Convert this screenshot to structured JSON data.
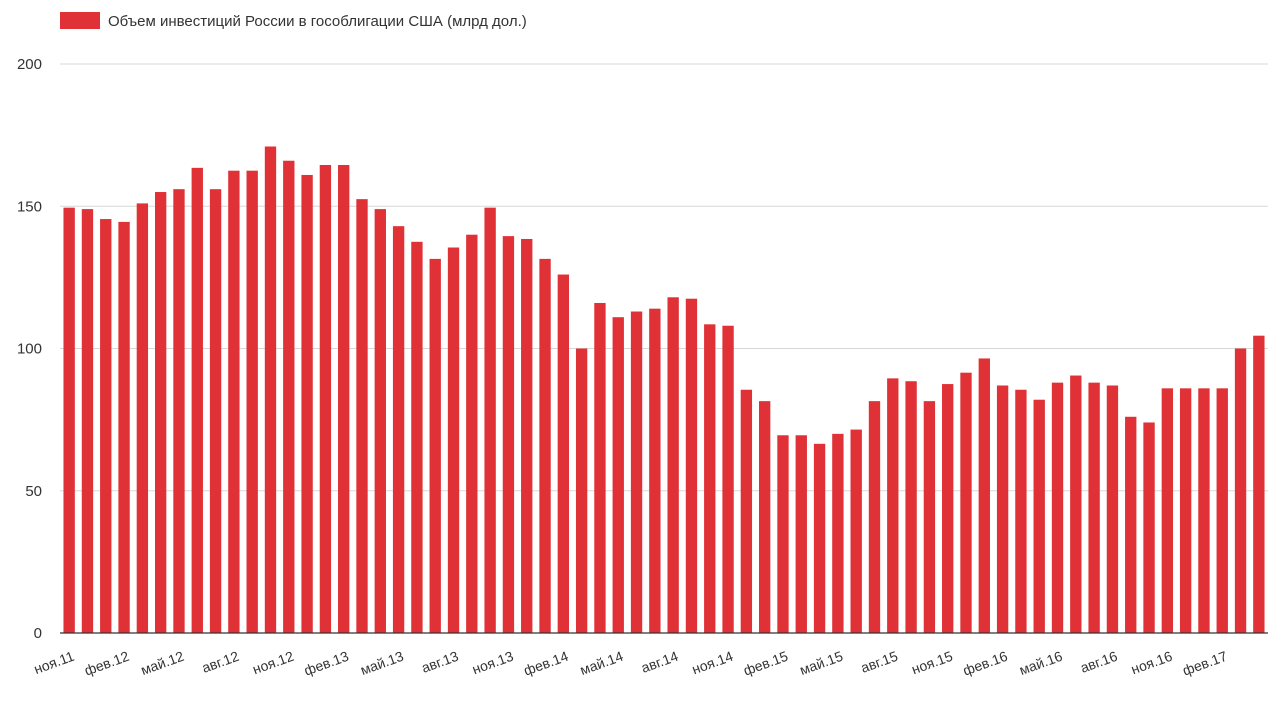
{
  "chart_data": {
    "type": "bar",
    "legend": {
      "label": "Объем инвестиций России в гособлигации США (млрд дол.)",
      "position": "top-left"
    },
    "series": [
      {
        "name": "Объем инвестиций России в гособлигации США (млрд дол.)",
        "color": "#e03236",
        "values": [
          149.5,
          149.0,
          145.5,
          144.5,
          151.0,
          155.0,
          156.0,
          163.5,
          156.0,
          162.5,
          162.5,
          171.0,
          166.0,
          161.0,
          164.5,
          164.5,
          152.5,
          149.0,
          143.0,
          137.5,
          131.5,
          135.5,
          140.0,
          149.5,
          139.5,
          138.5,
          131.5,
          126.0,
          100.0,
          116.0,
          111.0,
          113.0,
          114.0,
          118.0,
          117.5,
          108.5,
          108.0,
          85.5,
          81.5,
          69.5,
          69.5,
          66.5,
          70.0,
          71.5,
          81.5,
          89.5,
          88.5,
          81.5,
          87.5,
          91.5,
          96.5,
          87.0,
          85.5,
          82.0,
          88.0,
          90.5,
          88.0,
          87.0,
          76.0,
          74.0,
          86.0,
          86.0,
          86.0,
          86.0,
          100.0,
          104.5
        ]
      }
    ],
    "x_labels": [
      "ноя.11",
      "фев.12",
      "май.12",
      "авг.12",
      "ноя.12",
      "фев.13",
      "май.13",
      "авг.13",
      "ноя.13",
      "фев.14",
      "май.14",
      "авг.14",
      "ноя.14",
      "фев.15",
      "май.15",
      "авг.15",
      "ноя.15",
      "фев.16",
      "май.16",
      "авг.16",
      "ноя.16",
      "фев.17"
    ],
    "x_label_every": 3,
    "y_ticks": [
      0,
      50,
      100,
      150,
      200
    ],
    "ylim": [
      0,
      200
    ],
    "grid": true,
    "title": "",
    "xlabel": "",
    "ylabel": ""
  }
}
